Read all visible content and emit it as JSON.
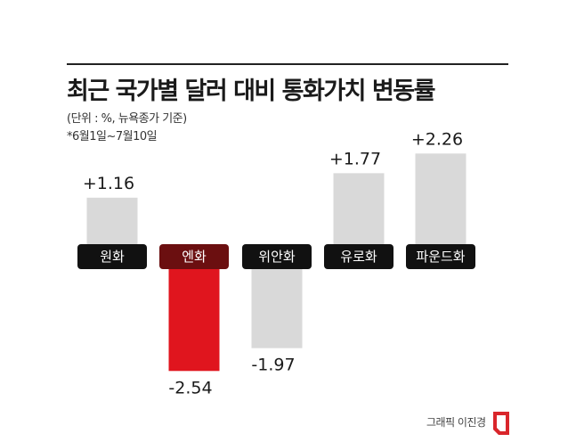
{
  "header": {
    "title": "최근 국가별 달러 대비 통화가치 변동률",
    "unit_note": "(단위 : %, 뉴욕종가 기준)",
    "period_note": "*6월1일~7월10일"
  },
  "credit": "그래픽 이진경",
  "colors": {
    "bar_default": "#d9d9d9",
    "bar_highlight": "#e0151e",
    "label_bg_default": "#111111",
    "label_bg_highlight": "#6b0f10",
    "label_text": "#ffffff",
    "logo": "#d9262b"
  },
  "chart_data": {
    "type": "bar",
    "categories": [
      "원화",
      "엔화",
      "위안화",
      "유로화",
      "파운드화"
    ],
    "values": [
      1.16,
      -2.54,
      -1.97,
      1.77,
      2.26
    ],
    "value_labels": [
      "+1.16",
      "-2.54",
      "-1.97",
      "+1.77",
      "+2.26"
    ],
    "highlight_index": 1,
    "title": "최근 국가별 달러 대비 통화가치 변동률",
    "xlabel": "",
    "ylabel": "",
    "unit": "%",
    "grid": false,
    "legend": "none"
  }
}
